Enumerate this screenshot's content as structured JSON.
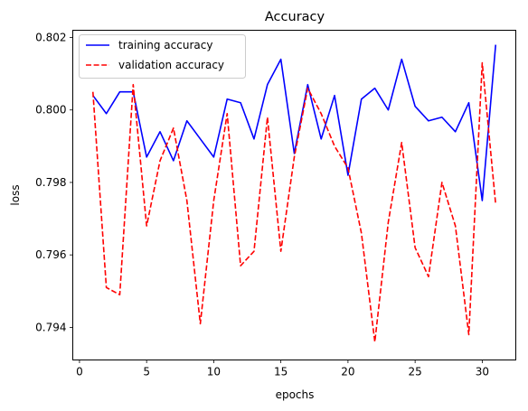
{
  "chart_data": {
    "type": "line",
    "title": "Accuracy",
    "xlabel": "epochs",
    "ylabel": "loss",
    "xlim": [
      -0.5,
      32.5
    ],
    "ylim": [
      0.7931,
      0.8022
    ],
    "x_ticks": [
      0,
      5,
      10,
      15,
      20,
      25,
      30
    ],
    "y_ticks": [
      0.794,
      0.796,
      0.798,
      0.8,
      0.802
    ],
    "y_tick_labels": [
      "0.794",
      "0.796",
      "0.798",
      "0.800",
      "0.802"
    ],
    "grid": false,
    "legend_position": "upper-left",
    "x": [
      1,
      2,
      3,
      4,
      5,
      6,
      7,
      8,
      9,
      10,
      11,
      12,
      13,
      14,
      15,
      16,
      17,
      18,
      19,
      20,
      21,
      22,
      23,
      24,
      25,
      26,
      27,
      28,
      29,
      30,
      31
    ],
    "series": [
      {
        "name": "training accuracy",
        "color": "#0000ff",
        "style": "solid",
        "values": [
          0.8004,
          0.7999,
          0.8005,
          0.8005,
          0.7987,
          0.7994,
          0.7986,
          0.7997,
          0.7992,
          0.7987,
          0.8003,
          0.8002,
          0.7992,
          0.8007,
          0.8014,
          0.7988,
          0.8007,
          0.7992,
          0.8004,
          0.7982,
          0.8003,
          0.8006,
          0.8,
          0.8014,
          0.8001,
          0.7997,
          0.7998,
          0.7994,
          0.8002,
          0.7975,
          0.8018
        ]
      },
      {
        "name": "validation accuracy",
        "color": "#ff0000",
        "style": "dashed",
        "values": [
          0.8005,
          0.7951,
          0.7949,
          0.8007,
          0.7968,
          0.7986,
          0.7995,
          0.7975,
          0.7941,
          0.7975,
          0.7999,
          0.7957,
          0.7961,
          0.7998,
          0.7961,
          0.7987,
          0.8006,
          0.7999,
          0.799,
          0.7984,
          0.7966,
          0.7936,
          0.7969,
          0.7991,
          0.7962,
          0.7954,
          0.798,
          0.7968,
          0.7938,
          0.8013,
          0.7974
        ]
      }
    ]
  }
}
